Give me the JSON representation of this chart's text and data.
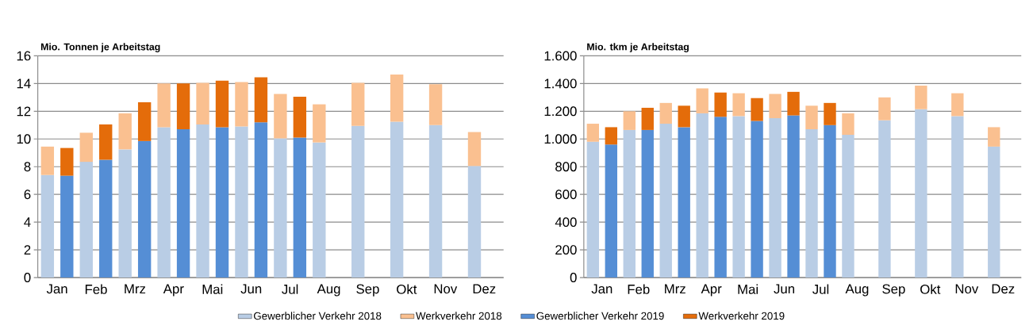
{
  "chart_data": [
    {
      "type": "bar",
      "ylabel": "Mio. Tonnen je Arbeitstag",
      "stacked": true,
      "grid": "y",
      "legend": "bottom",
      "categories": [
        "Jan",
        null,
        "Feb",
        null,
        "Mrz",
        null,
        "Apr",
        null,
        "Mai",
        null,
        "Jun",
        null,
        "Jul",
        null,
        "Aug",
        null,
        "Sep",
        null,
        "Okt",
        null,
        "Nov",
        null,
        "Dez",
        null
      ],
      "ylim": [
        0,
        16
      ],
      "yticks": [
        0,
        2,
        4,
        6,
        8,
        10,
        12,
        14,
        16
      ],
      "series": [
        {
          "name": "Gewerblicher Verkehr 2018",
          "color": "#b9cde5",
          "values": [
            7.4,
            null,
            8.35,
            null,
            9.25,
            null,
            10.85,
            null,
            11.05,
            null,
            10.9,
            null,
            10.05,
            null,
            9.75,
            null,
            10.95,
            null,
            11.25,
            null,
            11.0,
            null,
            8.05,
            null
          ]
        },
        {
          "name": "Werkverkehr 2018",
          "color": "#fac090",
          "values": [
            2.05,
            null,
            2.1,
            null,
            2.6,
            null,
            3.15,
            null,
            3.0,
            null,
            3.2,
            null,
            3.2,
            null,
            2.75,
            null,
            3.1,
            null,
            3.4,
            null,
            2.95,
            null,
            2.45,
            null
          ]
        },
        {
          "name": "Gewerblicher Verkehr 2019",
          "color": "#558ed5",
          "values": [
            null,
            7.35,
            null,
            8.5,
            null,
            9.85,
            null,
            10.7,
            null,
            10.85,
            null,
            11.2,
            null,
            10.1,
            null,
            null,
            null,
            null,
            null,
            null,
            null,
            null,
            null,
            null
          ]
        },
        {
          "name": "Werkverkehr 2019",
          "color": "#e46c0a",
          "values": [
            null,
            2.0,
            null,
            2.55,
            null,
            2.8,
            null,
            3.3,
            null,
            3.35,
            null,
            3.25,
            null,
            2.95,
            null,
            null,
            null,
            null,
            null,
            null,
            null,
            null,
            null,
            null
          ]
        }
      ]
    },
    {
      "type": "bar",
      "ylabel": "Mio. tkm je Arbeitstag",
      "stacked": true,
      "grid": "y",
      "categories": [
        "Jan",
        null,
        "Feb",
        null,
        "Mrz",
        null,
        "Apr",
        null,
        "Mai",
        null,
        "Jun",
        null,
        "Jul",
        null,
        "Aug",
        null,
        "Sep",
        null,
        "Okt",
        null,
        "Nov",
        null,
        "Dez",
        null
      ],
      "ylim": [
        0,
        1600
      ],
      "yticks": [
        0,
        200,
        400,
        600,
        800,
        {
          "value": 1000,
          "label": "1.000"
        },
        {
          "value": 1200,
          "label": "1.200"
        },
        {
          "value": 1400,
          "label": "1.400"
        },
        {
          "value": 1600,
          "label": "1.600"
        }
      ],
      "series": [
        {
          "color": "#b9cde5",
          "values": [
            980,
            null,
            1065,
            null,
            1110,
            null,
            1185,
            null,
            1165,
            null,
            1150,
            null,
            1070,
            null,
            1030,
            null,
            1135,
            null,
            1215,
            null,
            1165,
            null,
            945,
            null
          ]
        },
        {
          "color": "#fac090",
          "values": [
            130,
            null,
            135,
            null,
            150,
            null,
            180,
            null,
            165,
            null,
            175,
            null,
            170,
            null,
            155,
            null,
            165,
            null,
            170,
            null,
            165,
            null,
            140,
            null
          ]
        },
        {
          "color": "#558ed5",
          "values": [
            null,
            960,
            null,
            1065,
            null,
            1085,
            null,
            1160,
            null,
            1130,
            null,
            1170,
            null,
            1100,
            null,
            null,
            null,
            null,
            null,
            null,
            null,
            null,
            null,
            null
          ]
        },
        {
          "color": "#e46c0a",
          "values": [
            null,
            125,
            null,
            160,
            null,
            155,
            null,
            175,
            null,
            165,
            null,
            170,
            null,
            160,
            null,
            null,
            null,
            null,
            null,
            null,
            null,
            null,
            null,
            null
          ]
        }
      ]
    }
  ]
}
